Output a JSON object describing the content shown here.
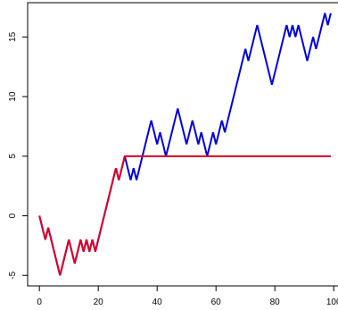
{
  "chart_data": {
    "type": "line",
    "x": [
      0,
      1,
      2,
      3,
      4,
      5,
      6,
      7,
      8,
      9,
      10,
      11,
      12,
      13,
      14,
      15,
      16,
      17,
      18,
      19,
      20,
      21,
      22,
      23,
      24,
      25,
      26,
      27,
      28,
      29,
      30,
      31,
      32,
      33,
      34,
      35,
      36,
      37,
      38,
      39,
      40,
      41,
      42,
      43,
      44,
      45,
      46,
      47,
      48,
      49,
      50,
      51,
      52,
      53,
      54,
      55,
      56,
      57,
      58,
      59,
      60,
      61,
      62,
      63,
      64,
      65,
      66,
      67,
      68,
      69,
      70,
      71,
      72,
      73,
      74,
      75,
      76,
      77,
      78,
      79,
      80,
      81,
      82,
      83,
      84,
      85,
      86,
      87,
      88,
      89,
      90,
      91,
      92,
      93,
      94,
      95,
      96,
      97,
      98,
      99
    ],
    "series": [
      {
        "color": "#0000dd",
        "values": [
          0,
          -1,
          -2,
          -1,
          -2,
          -3,
          -4,
          -5,
          -4,
          -3,
          -2,
          -3,
          -4,
          -3,
          -2,
          -3,
          -2,
          -3,
          -2,
          -3,
          -2,
          -1,
          0,
          1,
          2,
          3,
          4,
          3,
          4,
          5,
          4,
          3,
          4,
          3,
          4,
          5,
          6,
          7,
          8,
          7,
          6,
          7,
          6,
          5,
          6,
          7,
          8,
          9,
          8,
          7,
          6,
          7,
          8,
          7,
          6,
          7,
          6,
          5,
          6,
          7,
          6,
          7,
          8,
          7,
          8,
          9,
          10,
          11,
          12,
          13,
          14,
          13,
          14,
          15,
          16,
          15,
          14,
          13,
          12,
          11,
          12,
          13,
          14,
          15,
          16,
          15,
          16,
          15,
          16,
          15,
          14,
          13,
          14,
          15,
          14,
          15,
          16,
          17,
          16,
          17
        ]
      },
      {
        "color": "#dd0022",
        "values": [
          0,
          -1,
          -2,
          -1,
          -2,
          -3,
          -4,
          -5,
          -4,
          -3,
          -2,
          -3,
          -4,
          -3,
          -2,
          -3,
          -2,
          -3,
          -2,
          -3,
          -2,
          -1,
          0,
          1,
          2,
          3,
          4,
          3,
          4,
          5,
          5,
          5,
          5,
          5,
          5,
          5,
          5,
          5,
          5,
          5,
          5,
          5,
          5,
          5,
          5,
          5,
          5,
          5,
          5,
          5,
          5,
          5,
          5,
          5,
          5,
          5,
          5,
          5,
          5,
          5,
          5,
          5,
          5,
          5,
          5,
          5,
          5,
          5,
          5,
          5,
          5,
          5,
          5,
          5,
          5,
          5,
          5,
          5,
          5,
          5,
          5,
          5,
          5,
          5,
          5,
          5,
          5,
          5,
          5,
          5,
          5,
          5,
          5,
          5,
          5,
          5,
          5,
          5,
          5,
          5
        ]
      }
    ],
    "xlim": [
      -4,
      103
    ],
    "ylim": [
      -5.88,
      17.88
    ],
    "xticks": [
      0,
      20,
      40,
      60,
      80,
      100
    ],
    "yticks": [
      -5,
      0,
      5,
      10,
      15
    ]
  }
}
